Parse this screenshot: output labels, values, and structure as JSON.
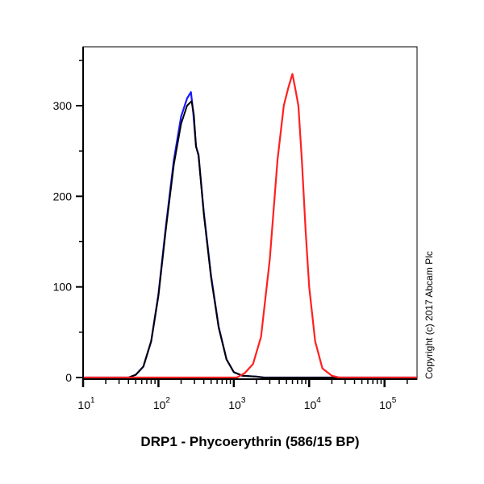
{
  "chart_data": {
    "type": "line",
    "title": "",
    "xlabel": "DRP1 - Phycoerythrin (586/15 BP)",
    "ylabel": "",
    "xscale": "log",
    "xlim": [
      10,
      270000
    ],
    "ylim": [
      0,
      365
    ],
    "yticks": [
      0,
      100,
      200,
      300
    ],
    "xticks": [
      {
        "base": "10",
        "exp": "1",
        "value": 10
      },
      {
        "base": "10",
        "exp": "2",
        "value": 100
      },
      {
        "base": "10",
        "exp": "3",
        "value": 1000
      },
      {
        "base": "10",
        "exp": "4",
        "value": 10000
      },
      {
        "base": "10",
        "exp": "5",
        "value": 100000
      }
    ],
    "grid": false,
    "annotation": "Copyright (c) 2017 Abcam Plc",
    "series": [
      {
        "name": "blue",
        "color": "#1a1aff",
        "x": [
          10,
          40,
          50,
          63,
          80,
          100,
          126,
          160,
          200,
          240,
          270,
          290,
          315,
          340,
          400,
          500,
          630,
          800,
          1000,
          1300,
          2000,
          2500,
          270000
        ],
        "y": [
          0,
          0,
          3,
          12,
          40,
          92,
          168,
          240,
          288,
          308,
          315,
          292,
          255,
          246,
          182,
          112,
          56,
          20,
          6,
          2,
          1,
          0,
          0
        ]
      },
      {
        "name": "black",
        "color": "#000000",
        "x": [
          10,
          40,
          50,
          63,
          80,
          100,
          126,
          160,
          200,
          240,
          275,
          295,
          315,
          340,
          400,
          500,
          630,
          800,
          1000,
          1300,
          2000,
          2500,
          270000
        ],
        "y": [
          0,
          0,
          3,
          12,
          40,
          90,
          165,
          235,
          280,
          300,
          305,
          290,
          255,
          245,
          180,
          110,
          55,
          20,
          6,
          2,
          1,
          0,
          0
        ]
      },
      {
        "name": "red",
        "color": "#ff2020",
        "x": [
          10,
          1100,
          1400,
          1800,
          2300,
          3000,
          3800,
          4600,
          5300,
          6000,
          6500,
          7200,
          8000,
          9000,
          10000,
          12000,
          15000,
          20000,
          25000,
          270000
        ],
        "y": [
          0,
          0,
          5,
          15,
          45,
          130,
          240,
          300,
          320,
          335,
          320,
          300,
          240,
          160,
          100,
          40,
          10,
          2,
          0,
          0
        ]
      }
    ]
  }
}
